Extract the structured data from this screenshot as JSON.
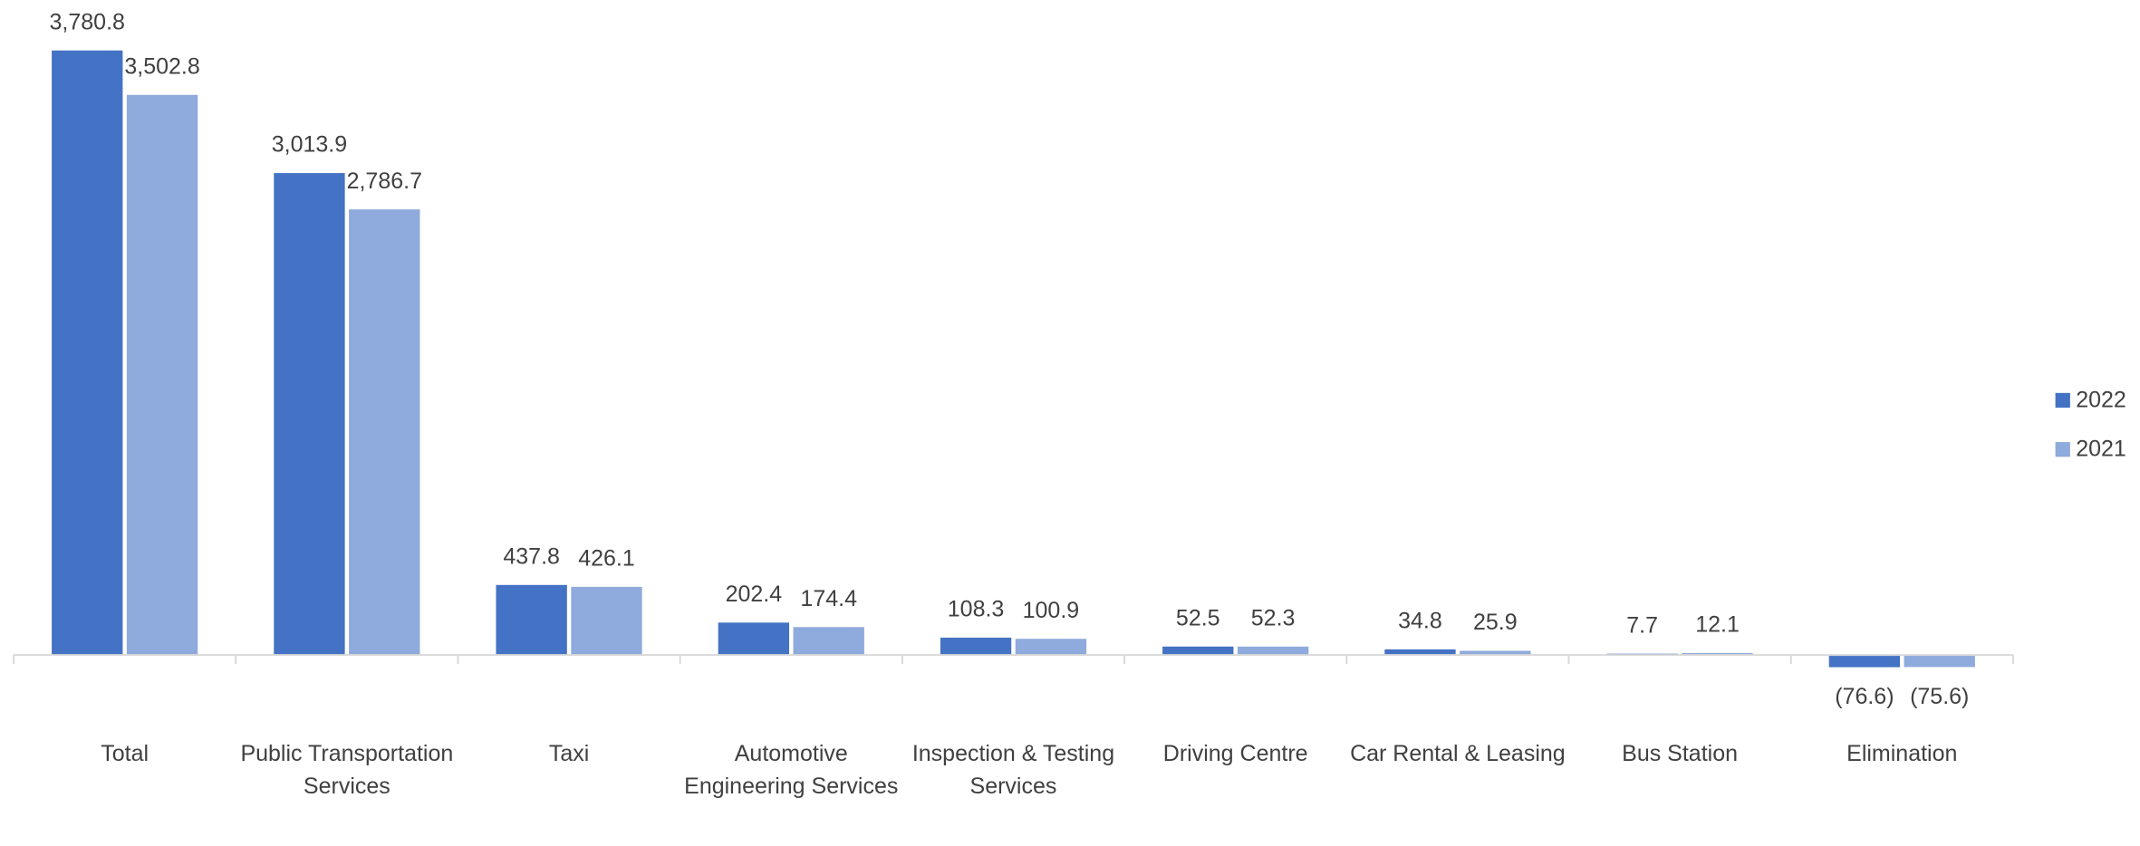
{
  "chart_data": {
    "type": "bar",
    "categories": [
      "Total",
      "Public Transportation Services",
      "Taxi",
      "Automotive Engineering Services",
      "Inspection & Testing Services",
      "Driving Centre",
      "Car Rental & Leasing",
      "Bus Station",
      "Elimination"
    ],
    "series": [
      {
        "name": "2022",
        "color": "#4472c4",
        "values": [
          3780.8,
          3013.9,
          437.8,
          202.4,
          108.3,
          52.5,
          34.8,
          7.7,
          -76.6
        ],
        "value_labels": [
          "3,780.8",
          "3,013.9",
          "437.8",
          "202.4",
          "108.3",
          "52.5",
          "34.8",
          "7.7",
          "(76.6)"
        ]
      },
      {
        "name": "2021",
        "color": "#8faadc",
        "values": [
          3502.8,
          2786.7,
          426.1,
          174.4,
          100.9,
          52.3,
          25.9,
          12.1,
          -75.6
        ],
        "value_labels": [
          "3,502.8",
          "2,786.7",
          "426.1",
          "174.4",
          "100.9",
          "52.3",
          "25.9",
          "12.1",
          "(75.6)"
        ]
      }
    ],
    "ylim": [
      -500,
      4000
    ],
    "legend": "right"
  }
}
